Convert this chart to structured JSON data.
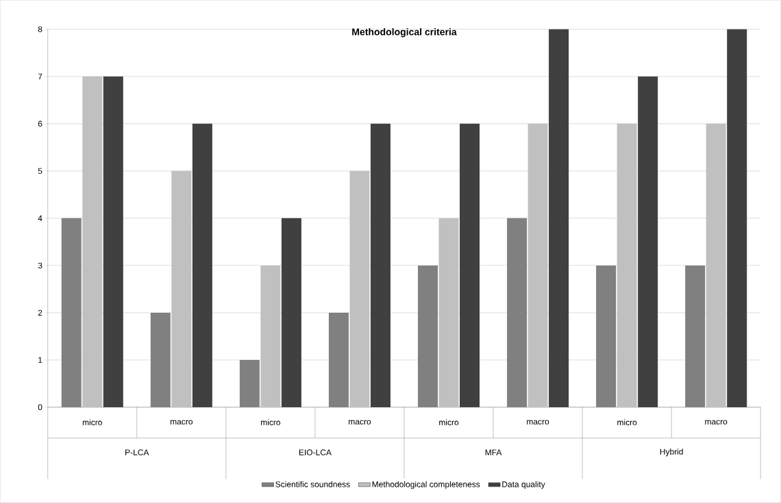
{
  "chart_data": {
    "type": "bar",
    "title": "Methodological criteria",
    "categories": [
      "micro",
      "macro",
      "micro",
      "macro",
      "micro",
      "macro",
      "micro",
      "macro"
    ],
    "annotations": [
      "P-LCA",
      "EIO-LCA",
      "MFA",
      "Hybrid"
    ],
    "series": [
      {
        "name": "Scientific soundness",
        "color": "#808080",
        "values": [
          4,
          2,
          1,
          2,
          3,
          4,
          3,
          3
        ]
      },
      {
        "name": "Methodological completeness",
        "color": "#c0c0c0",
        "values": [
          7,
          5,
          3,
          5,
          4,
          6,
          6,
          6
        ]
      },
      {
        "name": "Data quality",
        "color": "#404040",
        "values": [
          7,
          6,
          4,
          6,
          6,
          8,
          7,
          8
        ]
      }
    ],
    "ylim": [
      0,
      8
    ],
    "yticks": [
      0,
      1,
      2,
      3,
      4,
      5,
      6,
      7,
      8
    ],
    "grid": "y",
    "legend": "bottom"
  }
}
